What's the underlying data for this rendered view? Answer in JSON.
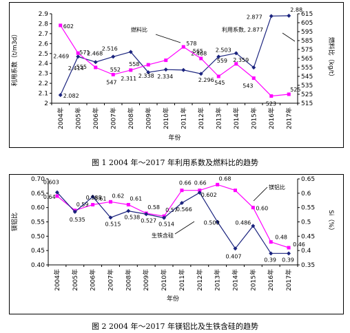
{
  "captions": {
    "fig1": "图 1   2004 年～2017 年利用系数及燃料比的趋势",
    "fig2": "图 2   2004 年～2017 年镁铝比及生铁含硅的趋势"
  },
  "chart_data": [
    {
      "type": "line",
      "categories": [
        "2004年",
        "2005年",
        "2006年",
        "2007年",
        "2008年",
        "2009年",
        "2010年",
        "2011年",
        "2012年",
        "2013年",
        "2014年",
        "2015年",
        "2016年",
        "2017年"
      ],
      "xlabel": "年份",
      "ylabel_left": "利用系数（t/m3d）",
      "ylabel_right": "燃料比（kg/t）",
      "y_left": {
        "min": 2.0,
        "max": 2.9,
        "step": 0.1,
        "ticks": [
          "2",
          "2.1",
          "2.2",
          "2.3",
          "2.4",
          "2.5",
          "2.6",
          "2.7",
          "2.8",
          "2.9"
        ]
      },
      "y_right": {
        "min": 515,
        "max": 615,
        "step": 10,
        "ticks": [
          "515",
          "525",
          "535",
          "545",
          "555",
          "565",
          "575",
          "585",
          "595",
          "605",
          "615"
        ]
      },
      "series": [
        {
          "name": "利用系数",
          "axis": "left",
          "color": "#1a237e",
          "marker": "diamond",
          "values": [
            2.082,
            2.469,
            2.414,
            2.468,
            2.516,
            2.311,
            2.338,
            2.334,
            2.296,
            2.468,
            2.503,
            2.359,
            2.877,
            2.88
          ],
          "labels": [
            "2.082",
            "2.469",
            "2.414",
            "2.468",
            "2.516",
            "2.311",
            "2.338",
            "2.334",
            "2.296",
            "2.468",
            "2.503",
            "2.359",
            "2.877",
            "2.88"
          ]
        },
        {
          "name": "燃料比",
          "axis": "right",
          "color": "#ff00ff",
          "marker": "square",
          "values": [
            602,
            571,
            555,
            547,
            552,
            558,
            563,
            578,
            565,
            545,
            559,
            543,
            523,
            525
          ],
          "labels": [
            "602",
            "571",
            "555",
            "547",
            "552",
            "558",
            "",
            "578",
            "565",
            "545",
            "559",
            "543",
            "523",
            "525"
          ]
        }
      ],
      "annotations": [
        "燃料比",
        "利用系数, 2.877"
      ]
    },
    {
      "type": "line",
      "categories": [
        "2004年",
        "2005年",
        "2006年",
        "2007年",
        "2008年",
        "2009年",
        "2010年",
        "2011年",
        "2012年",
        "2013年",
        "2014年",
        "2015年",
        "2016年",
        "2017年"
      ],
      "xlabel": "年份",
      "ylabel_left": "镁铝比",
      "ylabel_right": "Si（%）",
      "y_left": {
        "min": 0.4,
        "max": 0.7,
        "step": 0.05,
        "ticks": [
          "0.40",
          "0.45",
          "0.50",
          "0.55",
          "0.60",
          "0.65",
          "0.70"
        ]
      },
      "y_right": {
        "min": 0.35,
        "max": 0.65,
        "step": 0.05,
        "ticks": [
          "0.35",
          "0.4",
          "0.45",
          "0.5",
          "0.55",
          "0.6",
          "0.65"
        ]
      },
      "series": [
        {
          "name": "镁铝比",
          "axis": "left",
          "color": "#ff00ff",
          "marker": "square",
          "values": [
            0.64,
            0.59,
            0.61,
            0.62,
            0.61,
            0.58,
            0.57,
            0.66,
            0.66,
            0.68,
            0.66,
            0.6,
            0.48,
            0.46
          ],
          "labels": [
            "0.64",
            "0.59",
            "0.61",
            "0.62",
            "0.61",
            "0.58",
            "0.57",
            "0.66",
            "0.66",
            "0.68",
            "",
            "0.60",
            "0.48",
            "0.46"
          ]
        },
        {
          "name": "生铁含硅",
          "axis": "right",
          "color": "#1a237e",
          "marker": "diamond",
          "values": [
            0.603,
            0.535,
            0.588,
            0.515,
            0.538,
            0.527,
            0.514,
            0.566,
            0.602,
            0.5,
            0.407,
            0.486,
            0.39,
            0.39
          ],
          "labels": [
            "0.603",
            "0.535",
            "0.588",
            "0.515",
            "0.538",
            "0.527",
            "0.514",
            "0.566",
            "0.602",
            "0.500",
            "0.407",
            "0.486",
            "0.39",
            "0.39"
          ]
        }
      ],
      "annotations": [
        "镁铝比",
        "生铁含硅"
      ]
    }
  ]
}
